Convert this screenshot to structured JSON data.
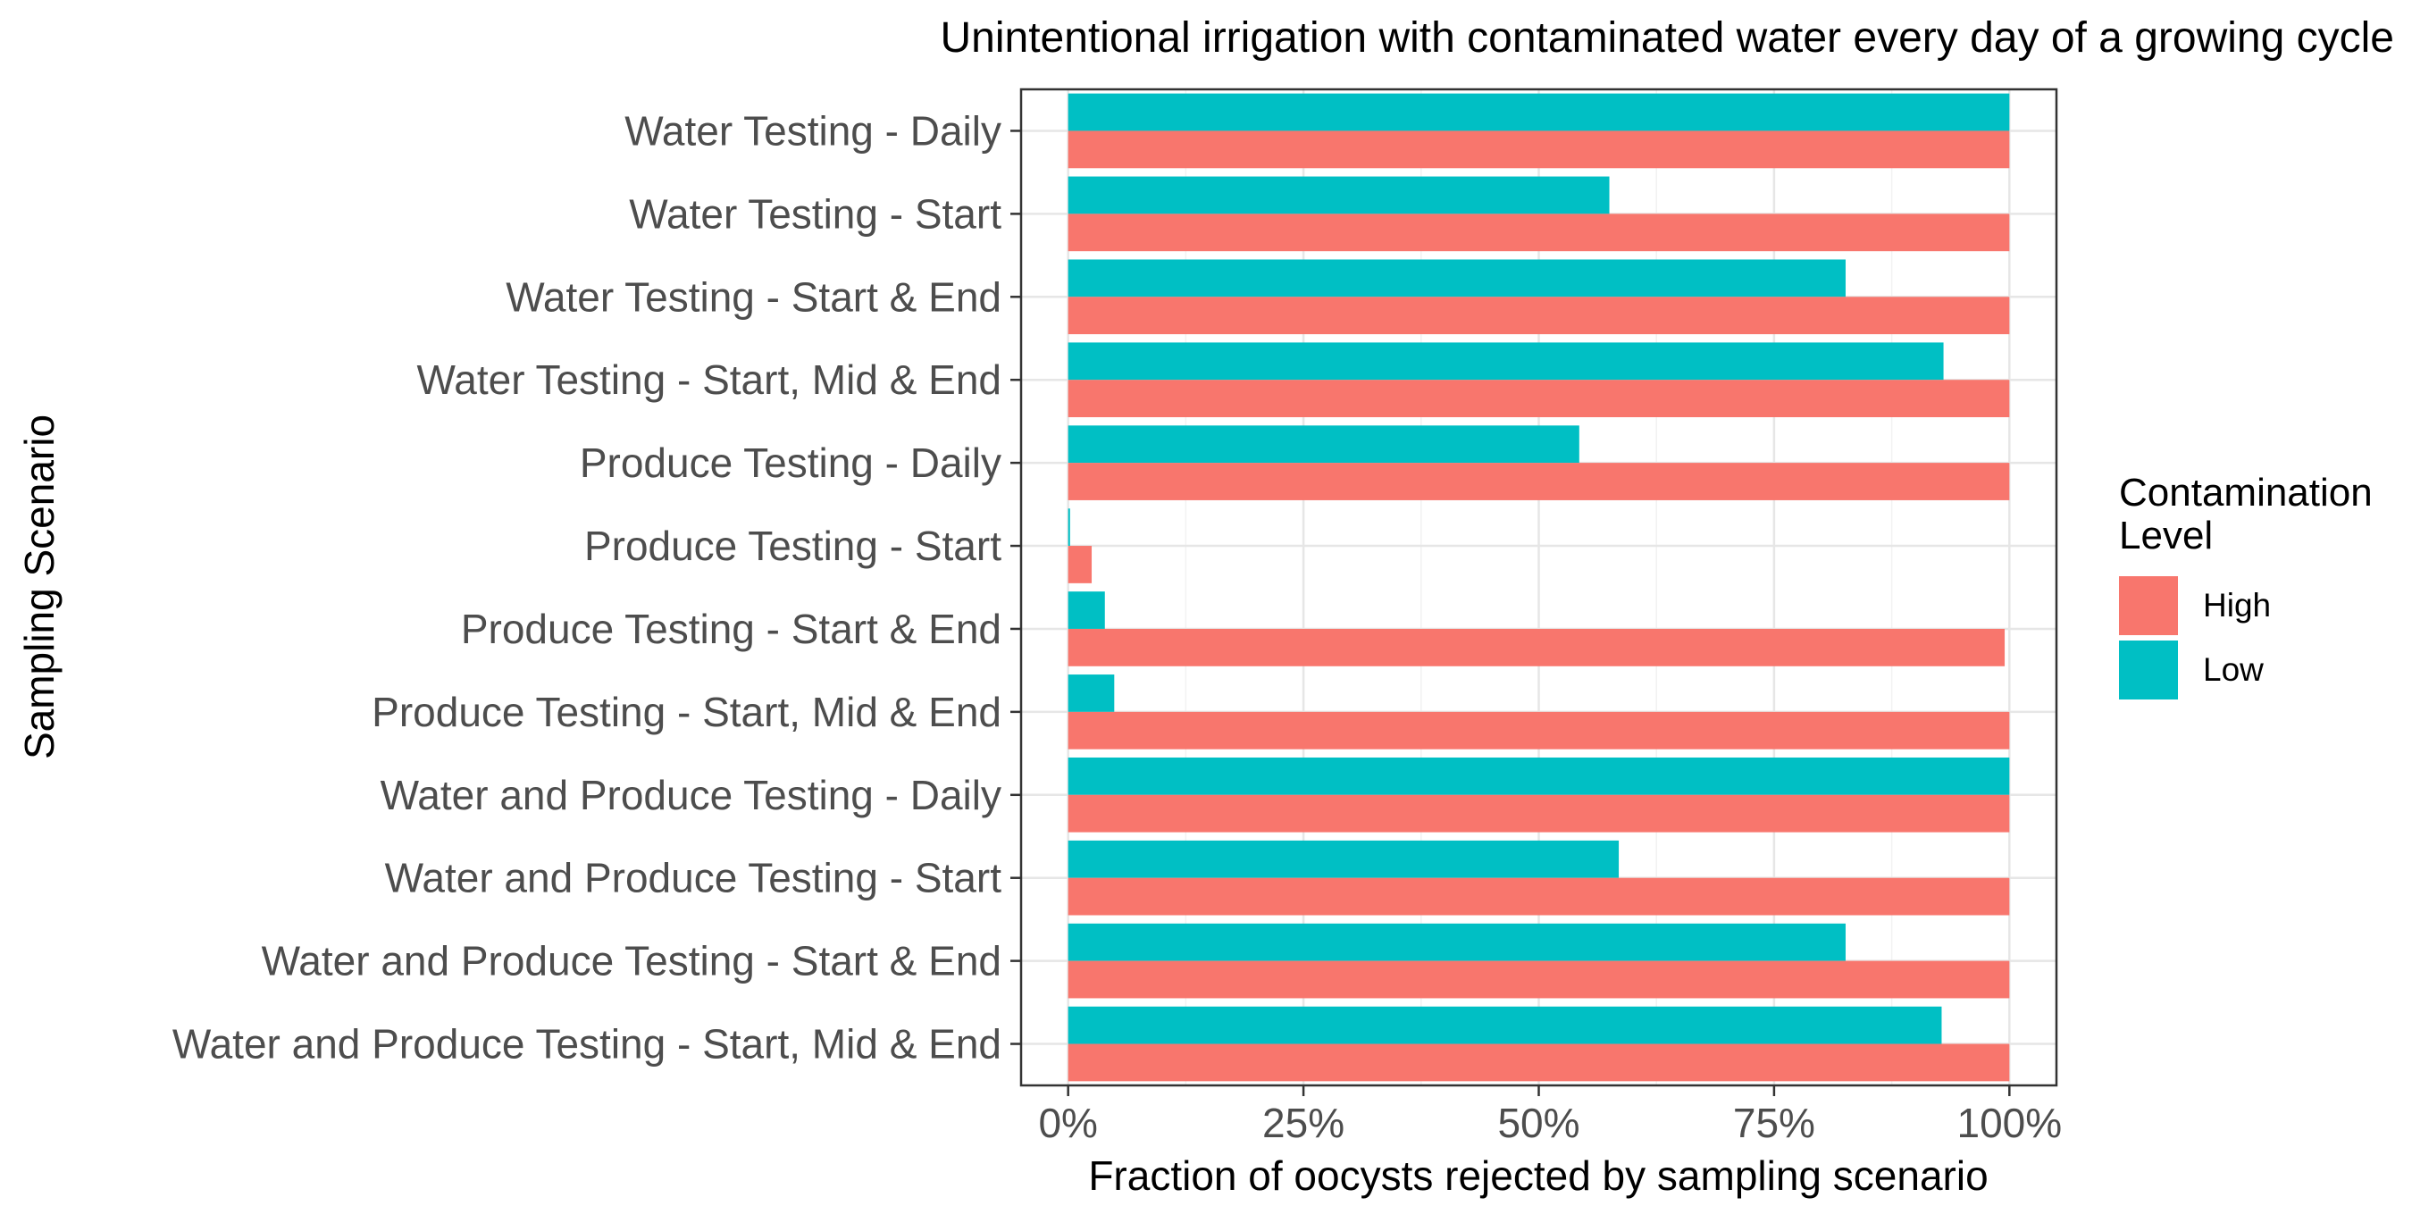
{
  "chart_data": {
    "type": "bar",
    "orientation": "horizontal",
    "title": "Unintentional irrigation with contaminated water every day of a growing cycle",
    "xlabel": "Fraction of oocysts rejected by sampling scenario",
    "ylabel": "Sampling Scenario",
    "xlim": [
      -0.05,
      1.05
    ],
    "x_ticks": [
      0,
      0.25,
      0.5,
      0.75,
      1.0
    ],
    "x_tick_labels": [
      "0%",
      "25%",
      "50%",
      "75%",
      "100%"
    ],
    "grid": true,
    "legend": {
      "title": "Contamination\nLevel",
      "placement": "right",
      "entries": [
        "High",
        "Low"
      ]
    },
    "categories": [
      "Water Testing - Daily",
      "Water Testing - Start",
      "Water Testing - Start & End",
      "Water Testing - Start, Mid & End",
      "Produce Testing - Daily",
      "Produce Testing - Start",
      "Produce Testing - Start & End",
      "Produce Testing - Start, Mid & End",
      "Water and Produce Testing - Daily",
      "Water and Produce Testing - Start",
      "Water and Produce Testing - Start & End",
      "Water and Produce Testing - Start, Mid & End"
    ],
    "series": [
      {
        "name": "Low",
        "color": "#00BFC4",
        "values": [
          1.0,
          0.575,
          0.826,
          0.93,
          0.543,
          0.002,
          0.039,
          0.049,
          1.0,
          0.585,
          0.826,
          0.928
        ]
      },
      {
        "name": "High",
        "color": "#F8766D",
        "values": [
          1.0,
          1.0,
          1.0,
          1.0,
          1.0,
          0.025,
          0.995,
          1.0,
          1.0,
          1.0,
          1.0,
          1.0
        ]
      }
    ]
  }
}
